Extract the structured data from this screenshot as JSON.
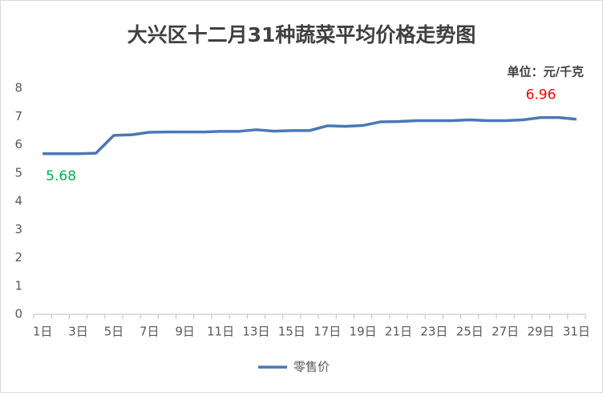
{
  "chart_data": {
    "type": "line",
    "title": "大兴区十二月31种蔬菜平均价格走势图",
    "unit_note": "单位：元/千克",
    "categories": [
      "1日",
      null,
      "3日",
      null,
      "5日",
      null,
      "7日",
      null,
      "9日",
      null,
      "11日",
      null,
      "13日",
      null,
      "15日",
      null,
      "17日",
      null,
      "19日",
      null,
      "21日",
      null,
      "23日",
      null,
      "25日",
      null,
      "27日",
      null,
      "29日",
      null,
      "31日"
    ],
    "series": [
      {
        "name": "零售价",
        "color": "#4a78b5",
        "values": [
          5.68,
          5.68,
          5.68,
          5.7,
          6.33,
          6.35,
          6.44,
          6.45,
          6.45,
          6.45,
          6.47,
          6.47,
          6.53,
          6.48,
          6.5,
          6.5,
          6.67,
          6.65,
          6.68,
          6.81,
          6.82,
          6.85,
          6.85,
          6.85,
          6.88,
          6.85,
          6.85,
          6.88,
          6.96,
          6.96,
          6.9
        ]
      }
    ],
    "data_labels": [
      {
        "index": 0,
        "color": "#00b050"
      },
      {
        "index": 28,
        "color": "#ff0000"
      }
    ],
    "ylim": [
      0,
      8
    ],
    "yticks": [
      0,
      1,
      2,
      3,
      4,
      5,
      6,
      7,
      8
    ],
    "grid": false,
    "legend": "bottom"
  }
}
